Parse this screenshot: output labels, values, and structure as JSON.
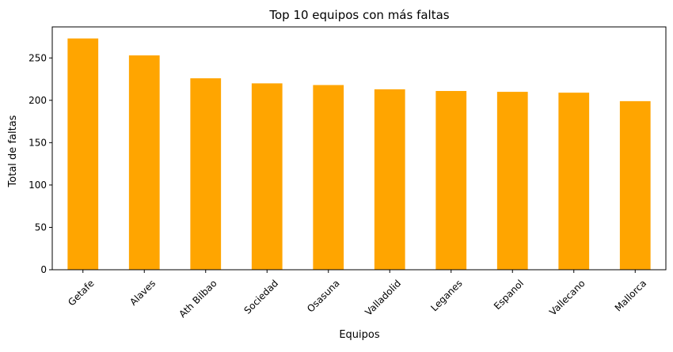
{
  "chart_data": {
    "type": "bar",
    "title": "Top 10 equipos con más faltas",
    "xlabel": "Equipos",
    "ylabel": "Total de faltas",
    "categories": [
      "Getafe",
      "Alaves",
      "Ath Bilbao",
      "Sociedad",
      "Osasuna",
      "Valladolid",
      "Leganes",
      "Espanol",
      "Vallecano",
      "Mallorca"
    ],
    "values": [
      273,
      253,
      226,
      220,
      218,
      213,
      211,
      210,
      209,
      199
    ],
    "ylim": [
      0,
      286.65
    ],
    "yticks": [
      0,
      50,
      100,
      150,
      200,
      250
    ],
    "bar_color": "#ffa500",
    "grid": false,
    "legend": "none"
  }
}
